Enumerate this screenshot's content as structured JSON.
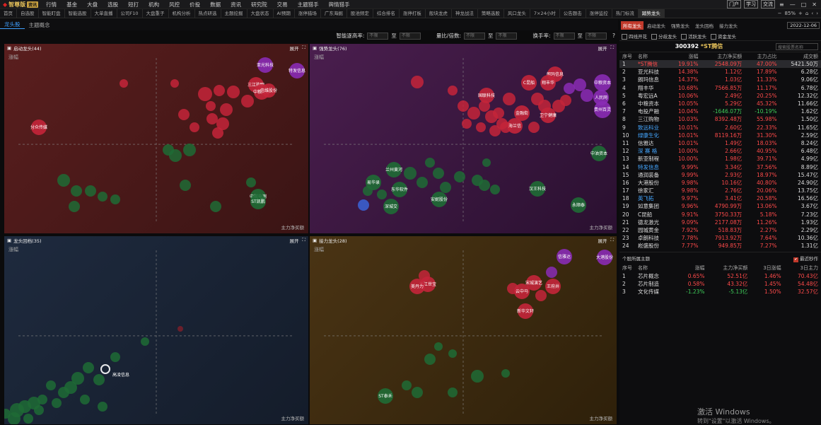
{
  "app": {
    "name": "智尊版",
    "version": "资讯",
    "menu": [
      "行情",
      "基金",
      "大盘",
      "选股",
      "短打",
      "机构",
      "风控",
      "价投",
      "数据",
      "资讯",
      "研究院",
      "交易",
      "主题猎手",
      "舆情猎手"
    ],
    "user_buttons": [
      "门户",
      "学习",
      "交流"
    ],
    "zoom": "85%"
  },
  "tabs": {
    "items": [
      "首页",
      "自选股",
      "智能盯盘",
      "智能选股",
      "大单直播",
      "公司F10",
      "大盘重子",
      "机构分析",
      "热点研选",
      "主题挖掘",
      "大盘状态",
      "AI预期",
      "涨停猎场",
      "广东海掘",
      "股池频定",
      "综合排名",
      "涨停打板",
      "般块龙虎",
      "神龙战法",
      "策略选股",
      "风口龙头",
      "7×24小时",
      "公告题击",
      "涨停监控",
      "热门标流",
      "踏势龙头"
    ],
    "active": "踏势龙头"
  },
  "subnav": {
    "items": [
      "龙头股",
      "主题概念"
    ],
    "active": "龙头股"
  },
  "filter": {
    "labels": [
      "智能逐高率:",
      "量比/倍数:",
      "换手率:"
    ],
    "placeholder": "不限",
    "to": "至"
  },
  "panels": [
    {
      "title": "启动龙头(44)",
      "y_label": "涨幅",
      "x_label": "主力净买额",
      "expand": "展开",
      "bg": "#4a1a1a"
    },
    {
      "title": "强势龙头(76)",
      "y_label": "涨幅",
      "x_label": "主力净买额",
      "expand": "展开",
      "bg": "#3a1a3e"
    },
    {
      "title": "龙头回档(35)",
      "y_label": "涨幅",
      "x_label": "主力净买额",
      "expand": "展开",
      "bg": "#1a2436"
    },
    {
      "title": "接力龙头(28)",
      "y_label": "涨幅",
      "x_label": "主力净买额",
      "expand": "展开",
      "bg": "#3a2a10"
    }
  ],
  "bubbles": {
    "p0": [
      {
        "t": "亚光科技",
        "c": "pur"
      },
      {
        "t": "特发信息",
        "c": "pur"
      },
      {
        "t": "三江购物",
        "c": "red"
      },
      {
        "t": "中粮资本",
        "c": "red"
      },
      {
        "t": "分众传媒",
        "c": "red"
      },
      {
        "t": "中航电测",
        "c": "grn"
      },
      {
        "t": "ST凯鹏",
        "c": "grn"
      },
      {
        "t": "信维股份",
        "c": "red"
      }
    ],
    "p1": [
      {
        "t": "C昆船",
        "c": "red"
      },
      {
        "t": "朗玛信息",
        "c": "red"
      },
      {
        "t": "翔丰华",
        "c": "red"
      },
      {
        "t": "中粮资本",
        "c": "pur"
      },
      {
        "t": "人民网",
        "c": "pur"
      },
      {
        "t": "贵州百灵",
        "c": "pur"
      },
      {
        "t": "海兰信",
        "c": "red"
      },
      {
        "t": "卫宁健康",
        "c": "red"
      },
      {
        "t": "中油资本",
        "c": "grn"
      },
      {
        "t": "兰州黄河",
        "c": "grn"
      },
      {
        "t": "易华录",
        "c": "grn"
      },
      {
        "t": "深城交",
        "c": "grn"
      },
      {
        "t": "安妮股份",
        "c": "grn"
      },
      {
        "t": "汉王科技",
        "c": "grn"
      },
      {
        "t": "永顺泰",
        "c": "grn"
      },
      {
        "t": "东华软件",
        "c": "grn"
      },
      {
        "t": "国联科技",
        "c": "red"
      },
      {
        "t": "金融街",
        "c": "red"
      }
    ],
    "p2": [
      {
        "t": "高凌信息",
        "c": "grn"
      }
    ],
    "p3": [
      {
        "t": "大港股份",
        "c": "pur"
      },
      {
        "t": "信雅达",
        "c": "pur"
      },
      {
        "t": "浙江世宝",
        "c": "red"
      },
      {
        "t": "美丹力",
        "c": "red"
      },
      {
        "t": "宋城演艺",
        "c": "red"
      },
      {
        "t": "王府井",
        "c": "red"
      },
      {
        "t": "云中马",
        "c": "red"
      },
      {
        "t": "新华文轩",
        "c": "red"
      },
      {
        "t": "ST泰禾",
        "c": "grn"
      }
    ]
  },
  "right": {
    "tabs": [
      "所有龙头",
      "启动龙头",
      "强势龙头",
      "龙头回档",
      "接力龙头"
    ],
    "active_tab": "所有龙头",
    "date": "2022-12-06",
    "checks": [
      "四线开花",
      "分歧龙头",
      "活跃龙头",
      "资金龙头"
    ],
    "stock_code": "300392",
    "stock_name": "*ST腾信",
    "search_placeholder": "搜索股票名称",
    "headers": [
      "序号",
      "名称",
      "涨幅",
      "主力净买额",
      "主力占比",
      "成交额"
    ],
    "rows": [
      [
        "1",
        "*ST腾信",
        "19.91%",
        "2548.09万",
        "47.00%",
        "5421.50万",
        "red"
      ],
      [
        "2",
        "亚光科技",
        "14.38%",
        "1.12亿",
        "17.89%",
        "6.28亿",
        "wht"
      ],
      [
        "3",
        "朗玛信息",
        "14.37%",
        "1.03亿",
        "11.33%",
        "9.06亿",
        "wht"
      ],
      [
        "4",
        "翔丰华",
        "10.68%",
        "7566.85万",
        "11.17%",
        "6.78亿",
        "wht"
      ],
      [
        "5",
        "粤宏远A",
        "10.06%",
        "2.49亿",
        "20.25%",
        "12.32亿",
        "wht"
      ],
      [
        "6",
        "中粮资本",
        "10.05%",
        "5.29亿",
        "45.32%",
        "11.66亿",
        "wht"
      ],
      [
        "7",
        "电投产融",
        "10.04%",
        "-1646.07万",
        "-10.19%",
        "1.62亿",
        "wht"
      ],
      [
        "8",
        "三江购物",
        "10.03%",
        "8392.48万",
        "55.98%",
        "1.50亿",
        "wht"
      ],
      [
        "9",
        "致远科业",
        "10.01%",
        "2.60亿",
        "22.33%",
        "11.65亿",
        "blu"
      ],
      [
        "10",
        "绿康生化",
        "10.01%",
        "8119.16万",
        "31.30%",
        "2.59亿",
        "blu"
      ],
      [
        "11",
        "信雅达",
        "10.01%",
        "1.49亿",
        "18.03%",
        "8.24亿",
        "wht"
      ],
      [
        "12",
        "深 赛 格",
        "10.00%",
        "2.66亿",
        "40.95%",
        "6.48亿",
        "blu"
      ],
      [
        "13",
        "新亚制程",
        "10.00%",
        "1.98亿",
        "39.71%",
        "4.99亿",
        "wht"
      ],
      [
        "14",
        "特发信息",
        "9.99%",
        "3.34亿",
        "37.56%",
        "8.89亿",
        "blu"
      ],
      [
        "15",
        "通润装备",
        "9.99%",
        "2.93亿",
        "18.97%",
        "15.47亿",
        "wht"
      ],
      [
        "16",
        "大港股份",
        "9.98%",
        "10.16亿",
        "40.80%",
        "24.90亿",
        "wht"
      ],
      [
        "17",
        "徐家汇",
        "9.98%",
        "2.76亿",
        "20.06%",
        "13.75亿",
        "wht"
      ],
      [
        "18",
        "英飞拓",
        "9.97%",
        "3.41亿",
        "20.58%",
        "16.56亿",
        "blu"
      ],
      [
        "19",
        "如意集团",
        "9.96%",
        "4790.99万",
        "13.06%",
        "3.67亿",
        "wht"
      ],
      [
        "20",
        "C昆船",
        "9.91%",
        "3750.33万",
        "5.18%",
        "7.23亿",
        "wht"
      ],
      [
        "21",
        "德龙激光",
        "9.09%",
        "2177.08万",
        "11.26%",
        "1.93亿",
        "wht"
      ],
      [
        "22",
        "园城黄金",
        "7.92%",
        "518.83万",
        "2.27%",
        "2.29亿",
        "wht"
      ],
      [
        "23",
        "卓朗科技",
        "7.78%",
        "7913.92万",
        "7.64%",
        "10.36亿",
        "wht"
      ],
      [
        "24",
        "崧盛股份",
        "7.77%",
        "949.85万",
        "7.27%",
        "1.31亿",
        "wht"
      ]
    ],
    "theme_title": "个股所属主题",
    "theme_check": "最近秒作",
    "theme_headers": [
      "序号",
      "名称",
      "涨幅",
      "主力净买额",
      "3日涨幅",
      "3日主力"
    ],
    "theme_rows": [
      [
        "1",
        "芯片概念",
        "0.65%",
        "52.51亿",
        "1.46%",
        "70.43亿"
      ],
      [
        "2",
        "芯片制造",
        "0.58%",
        "43.32亿",
        "1.45%",
        "54.48亿"
      ],
      [
        "3",
        "文化传媒",
        "-1.23%",
        "-5.13亿",
        "1.50%",
        "32.57亿"
      ]
    ]
  },
  "watermark": {
    "line1": "激活 Windows",
    "line2": "转到\"设置\"以激活 Windows。"
  }
}
